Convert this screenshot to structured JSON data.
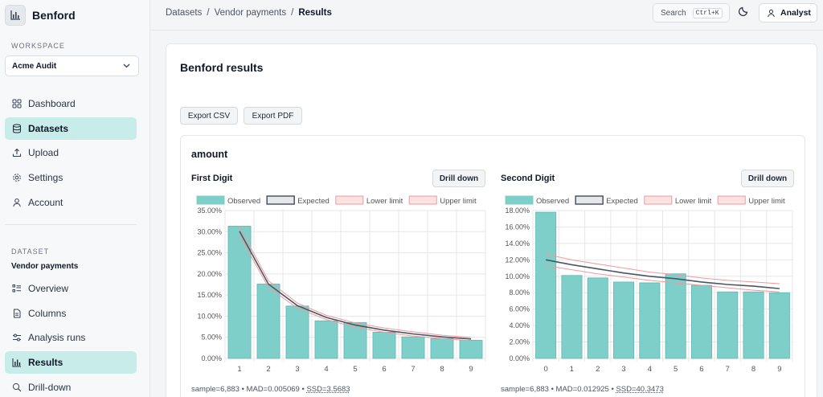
{
  "app": {
    "name": "Benford"
  },
  "sidebar": {
    "workspace_label": "WORKSPACE",
    "workspace_value": "Acme Audit",
    "nav": [
      {
        "label": "Dashboard",
        "icon": "dashboard-icon"
      },
      {
        "label": "Datasets",
        "icon": "database-icon",
        "active": true
      },
      {
        "label": "Upload",
        "icon": "upload-icon"
      },
      {
        "label": "Settings",
        "icon": "gear-icon"
      },
      {
        "label": "Account",
        "icon": "user-icon"
      }
    ],
    "dataset_label": "DATASET",
    "dataset_name": "Vendor payments",
    "dataset_nav": [
      {
        "label": "Overview",
        "icon": "list-icon"
      },
      {
        "label": "Columns",
        "icon": "file-icon"
      },
      {
        "label": "Analysis runs",
        "icon": "sliders-icon"
      },
      {
        "label": "Results",
        "icon": "bar-chart-icon",
        "active": true
      },
      {
        "label": "Drill-down",
        "icon": "search-icon"
      }
    ]
  },
  "topbar": {
    "breadcrumb": [
      "Datasets",
      "/",
      "Vendor payments",
      "/",
      "Results"
    ],
    "search_label": "Search",
    "search_shortcut": "Ctrl+K",
    "user_label": "Analyst"
  },
  "main": {
    "title": "Benford results",
    "export_csv": "Export CSV",
    "export_pdf": "Export PDF",
    "column_name": "amount"
  },
  "colors": {
    "accent": "#c8ecea",
    "observed": "#7ecfca",
    "expected": "#4b5563",
    "limit": "#ef9a9a"
  },
  "chart_data": [
    {
      "type": "bar",
      "title": "First Digit",
      "drill_label": "Drill down",
      "legend": [
        "Observed",
        "Expected",
        "Lower limit",
        "Upper limit"
      ],
      "legend_position": "top",
      "categories": [
        "1",
        "2",
        "3",
        "4",
        "5",
        "6",
        "7",
        "8",
        "9"
      ],
      "series": [
        {
          "name": "Observed",
          "type": "bar",
          "values": [
            31.3,
            17.6,
            12.4,
            8.9,
            8.5,
            6.2,
            5.1,
            4.7,
            4.3
          ]
        },
        {
          "name": "Expected",
          "type": "line",
          "values": [
            30.1,
            17.6,
            12.5,
            9.7,
            7.9,
            6.7,
            5.8,
            5.1,
            4.6
          ]
        },
        {
          "name": "Lower limit",
          "type": "line",
          "values": [
            29.1,
            16.8,
            11.9,
            9.2,
            7.4,
            6.2,
            5.3,
            4.7,
            4.2
          ]
        },
        {
          "name": "Upper limit",
          "type": "line",
          "values": [
            31.1,
            18.4,
            13.1,
            10.2,
            8.4,
            7.2,
            6.3,
            5.5,
            5.0
          ]
        }
      ],
      "ylim": [
        0,
        35
      ],
      "yticks": [
        "0.00%",
        "5.00%",
        "10.00%",
        "15.00%",
        "20.00%",
        "25.00%",
        "30.00%",
        "35.00%"
      ],
      "grid": true,
      "stats": {
        "prefix": "sample=6,883 • MAD=0.005069 • ",
        "ssd": "SSD=3.5683"
      }
    },
    {
      "type": "bar",
      "title": "Second Digit",
      "drill_label": "Drill down",
      "legend": [
        "Observed",
        "Expected",
        "Lower limit",
        "Upper limit"
      ],
      "legend_position": "top",
      "categories": [
        "0",
        "1",
        "2",
        "3",
        "4",
        "5",
        "6",
        "7",
        "8",
        "9"
      ],
      "series": [
        {
          "name": "Observed",
          "type": "bar",
          "values": [
            17.8,
            10.1,
            9.8,
            9.3,
            9.2,
            10.3,
            8.9,
            8.1,
            8.1,
            8.0
          ]
        },
        {
          "name": "Expected",
          "type": "line",
          "values": [
            12.0,
            11.4,
            10.9,
            10.4,
            10.0,
            9.7,
            9.3,
            9.0,
            8.8,
            8.5
          ]
        },
        {
          "name": "Lower limit",
          "type": "line",
          "values": [
            11.3,
            10.8,
            10.3,
            9.9,
            9.5,
            9.2,
            8.9,
            8.6,
            8.3,
            8.1
          ]
        },
        {
          "name": "Upper limit",
          "type": "line",
          "values": [
            12.7,
            12.0,
            11.5,
            11.0,
            10.5,
            10.2,
            9.8,
            9.5,
            9.3,
            9.1
          ]
        }
      ],
      "ylim": [
        0,
        18
      ],
      "yticks": [
        "0.00%",
        "2.00%",
        "4.00%",
        "6.00%",
        "8.00%",
        "10.00%",
        "12.00%",
        "14.00%",
        "16.00%",
        "18.00%"
      ],
      "grid": true,
      "stats": {
        "prefix": "sample=6,883 • MAD=0.012925 • ",
        "ssd": "SSD=40.3473"
      }
    }
  ]
}
